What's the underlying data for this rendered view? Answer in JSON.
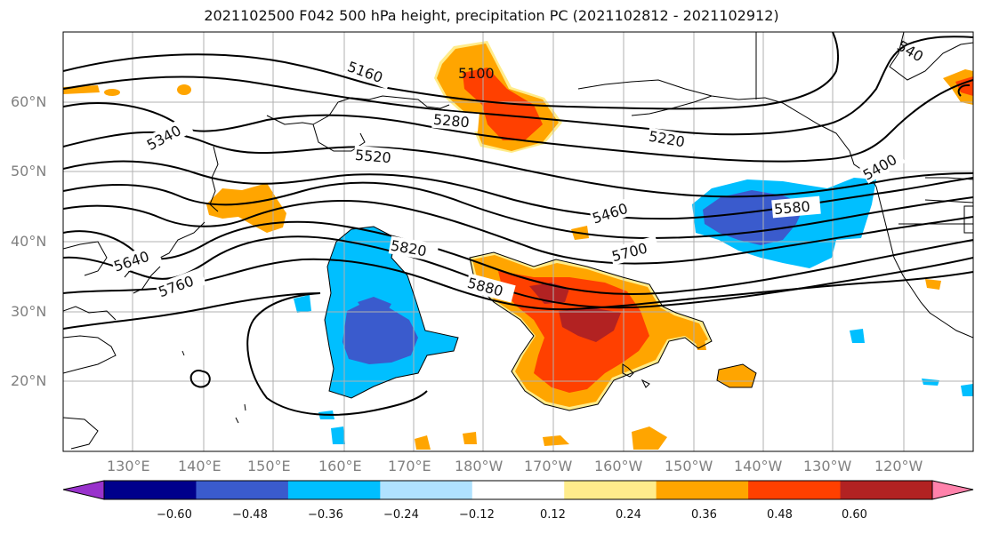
{
  "title": "2021102500 F042 500 hPa height, precipitation PC (2021102812 - 2021102912)",
  "lat_labels": [
    "60°N",
    "50°N",
    "40°N",
    "30°N",
    "20°N"
  ],
  "lon_labels": [
    "130°E",
    "140°E",
    "150°E",
    "160°E",
    "170°E",
    "180°W",
    "170°W",
    "160°W",
    "150°W",
    "140°W",
    "130°W",
    "120°W"
  ],
  "contour_labels": [
    "5160",
    "5100",
    "5280",
    "5220",
    "5340",
    "5520",
    "5460",
    "5580",
    "5400",
    "5640",
    "5760",
    "5820",
    "5700",
    "5880",
    "540"
  ],
  "colorbar": {
    "ticks": [
      "−0.60",
      "−0.48",
      "−0.36",
      "−0.24",
      "−0.12",
      "0.12",
      "0.24",
      "0.36",
      "0.48",
      "0.60"
    ],
    "colors": [
      "#9932cc",
      "#00008b",
      "#3a5bcd",
      "#00bfff",
      "#b0e2ff",
      "#ffffff",
      "#ffec8b",
      "#ffa500",
      "#ff4000",
      "#b22222",
      "#ff82ab"
    ]
  },
  "colors": {
    "deep_blue": "#3a5bcd",
    "light_blue": "#00bfff",
    "pale_blue": "#b0e2ff",
    "dark_red": "#b22222",
    "orange_red": "#ff4000",
    "orange": "#ffa500",
    "pale_yellow": "#ffec8b"
  }
}
